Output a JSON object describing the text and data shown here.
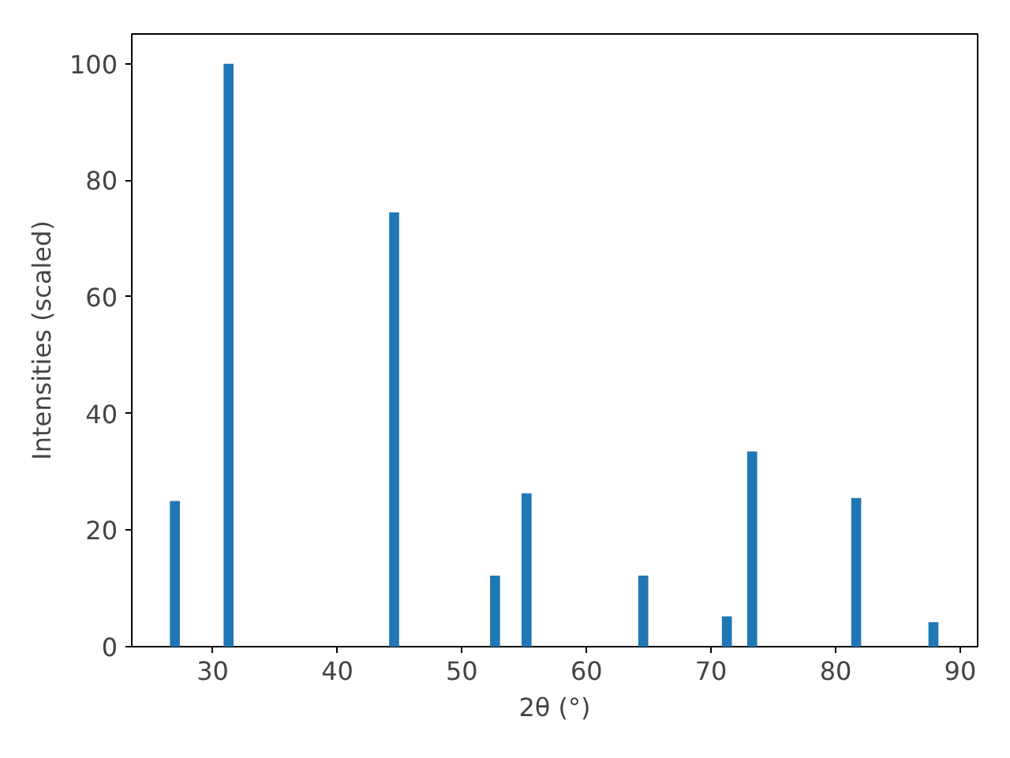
{
  "chart_data": {
    "type": "bar",
    "xlabel": "2θ (°)",
    "ylabel": "Intensities (scaled)",
    "x": [
      26.96,
      31.27,
      44.56,
      52.66,
      55.19,
      64.56,
      71.27,
      73.3,
      81.65,
      87.85
    ],
    "values": [
      25,
      100,
      74.5,
      12.2,
      26.3,
      12.2,
      5.2,
      33.5,
      25.5,
      4.2
    ],
    "color": "#1f77b4",
    "xlim": [
      23.5,
      91.4
    ],
    "xticks": [
      30,
      40,
      50,
      60,
      70,
      80,
      90
    ],
    "ylim": [
      0,
      105.1
    ],
    "yticks": [
      0,
      20,
      40,
      60,
      80,
      100
    ],
    "grid": false
  }
}
